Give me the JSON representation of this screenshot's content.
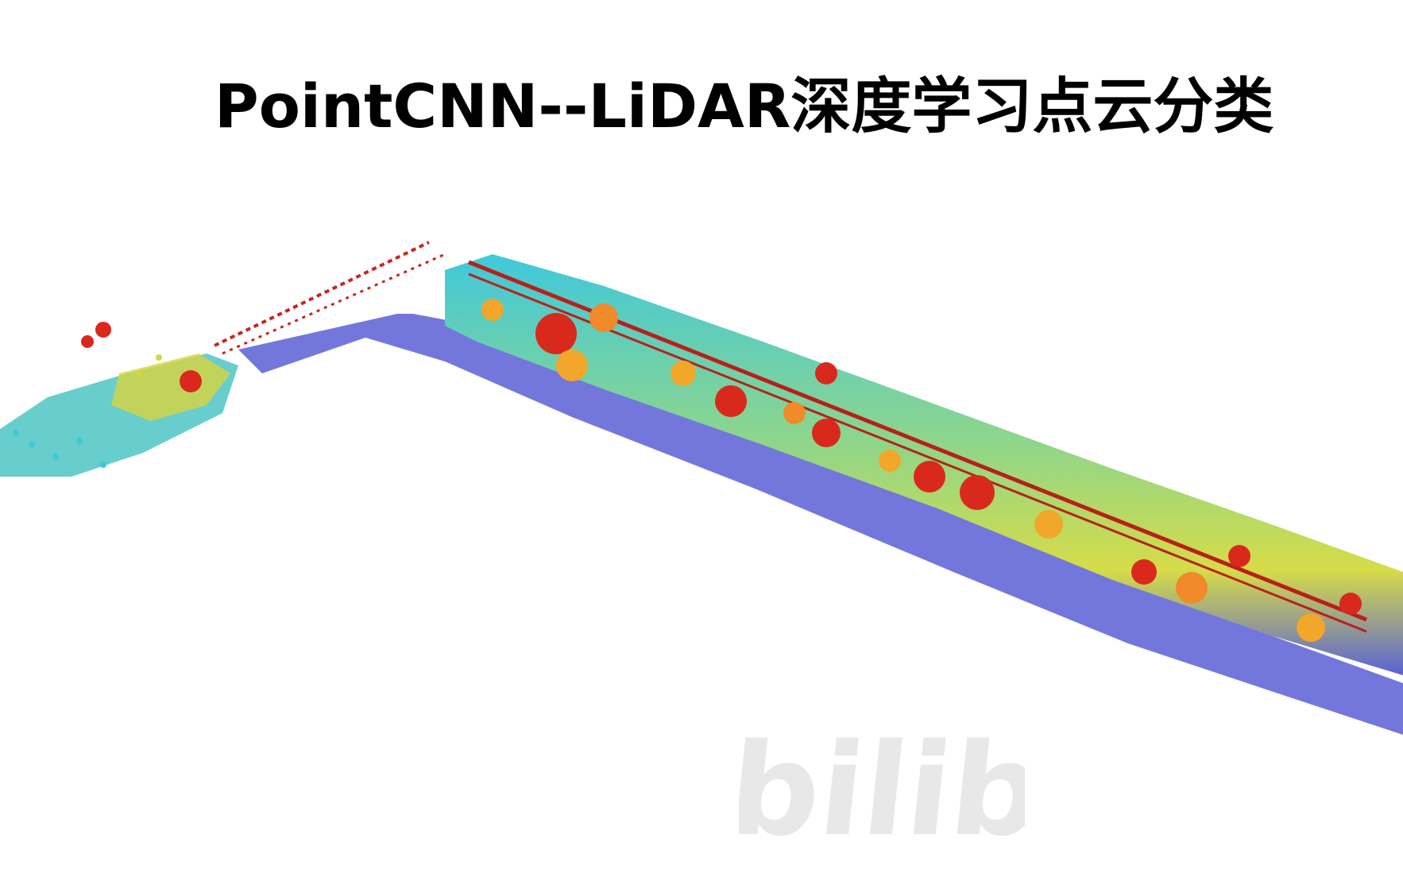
{
  "title": "PointCNN--LiDAR深度学习点云分类",
  "watermark": {
    "text": "bilibili",
    "color": "#d9d9d9"
  },
  "colormap": {
    "ground": "#5b5fd6",
    "low": "#3ec9d6",
    "mid": "#cfe23a",
    "high": "#f2a62a",
    "top": "#d9291c"
  }
}
